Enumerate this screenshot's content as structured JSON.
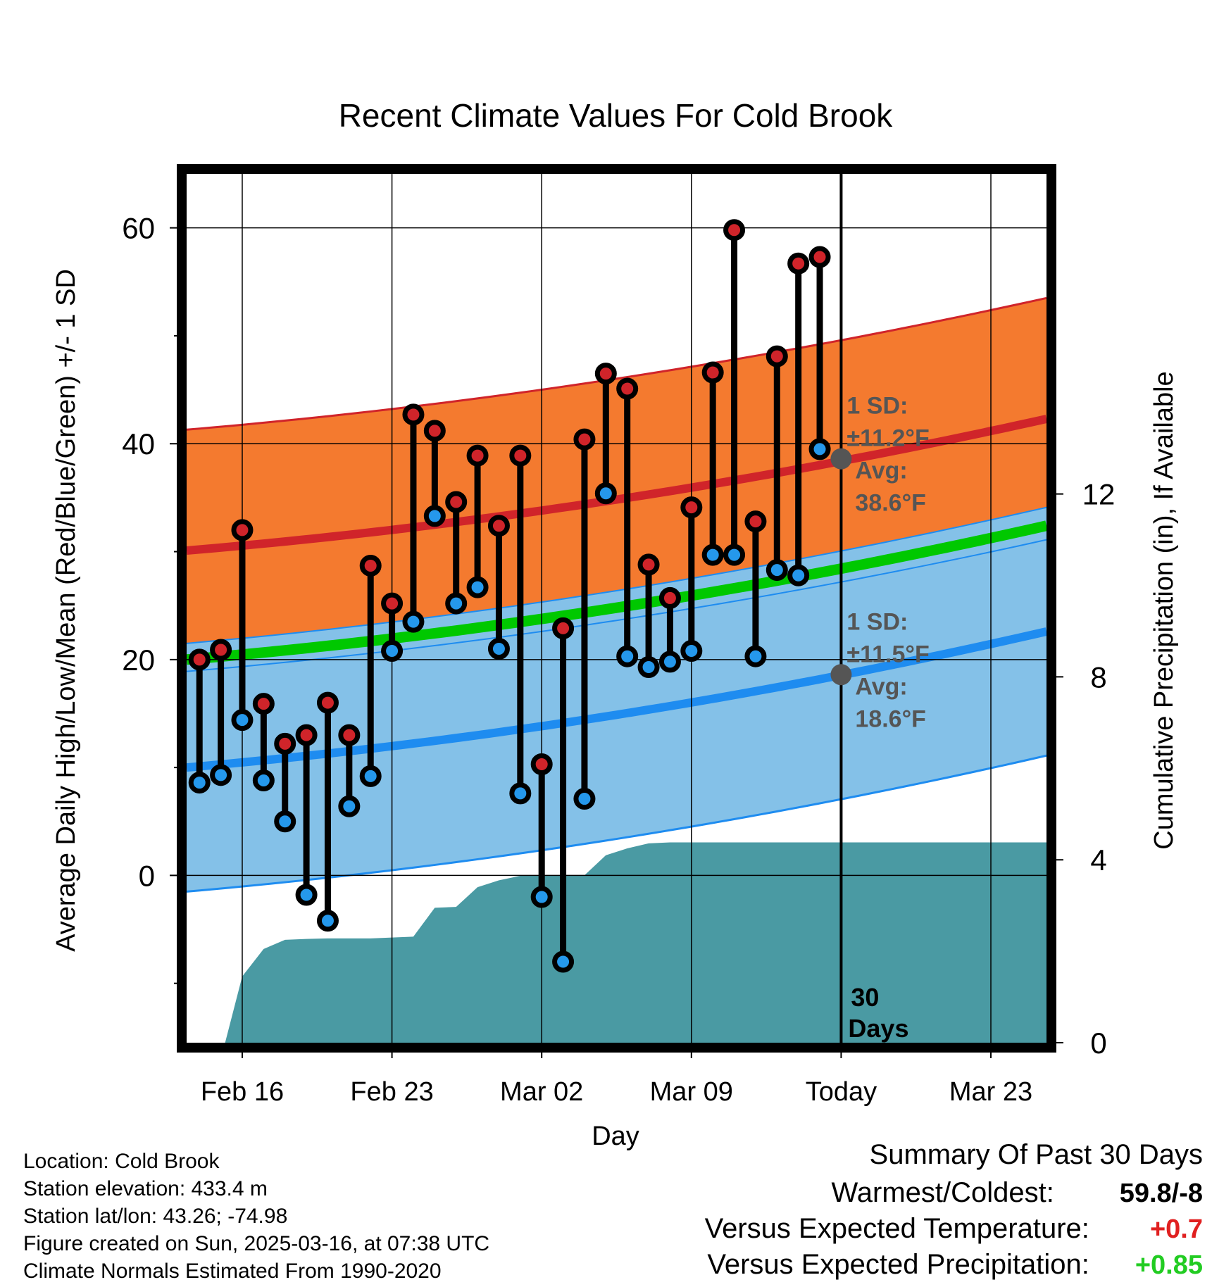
{
  "chart_data": {
    "type": "line",
    "title": "Recent Climate Values For Cold Brook",
    "xlabel": "Day",
    "ylabel": "Average Daily High/Low/Mean (Red/Blue/Green) +/- 1 SD",
    "y2label": "Cumulative Precipitation (in), If Available",
    "x_ticks": [
      "Feb 16",
      "Feb 23",
      "Mar 02",
      "Mar 09",
      "Today",
      "Mar 23"
    ],
    "x_tick_days": [
      0,
      7,
      14,
      21,
      28,
      35
    ],
    "xlim_days": [
      -2.6,
      37.6
    ],
    "ylim": [
      -15.5,
      65
    ],
    "y_ticks": [
      0,
      20,
      40,
      60
    ],
    "y2lim": [
      0,
      19
    ],
    "y2_ticks": [
      0,
      4,
      8,
      12
    ],
    "today_day": 28,
    "today_label": [
      "30",
      "Days"
    ],
    "observed": {
      "days": [
        -2,
        -1,
        0,
        1,
        2,
        3,
        4,
        5,
        6,
        7,
        8,
        9,
        10,
        11,
        12,
        13,
        14,
        15,
        16,
        17,
        18,
        19,
        20,
        21,
        22,
        23,
        24,
        25,
        26,
        27
      ],
      "high": [
        20,
        20.9,
        32,
        15.9,
        12.2,
        13,
        16,
        13,
        28.7,
        25.2,
        42.7,
        41.2,
        34.6,
        38.9,
        32.4,
        38.9,
        10.3,
        22.9,
        40.4,
        46.5,
        45.1,
        28.8,
        25.7,
        34.1,
        46.6,
        59.8,
        32.8,
        48.1,
        56.7,
        57.3
      ],
      "low": [
        8.6,
        9.3,
        14.4,
        8.8,
        5,
        -1.8,
        -4.2,
        6.4,
        9.2,
        20.8,
        23.5,
        33.3,
        25.2,
        26.7,
        21,
        7.6,
        -2,
        -8,
        7.1,
        35.4,
        20.3,
        19.3,
        19.8,
        20.8,
        29.7,
        29.7,
        20.3,
        28.3,
        27.8,
        39.5
      ]
    },
    "normals": {
      "days": [
        -2.6,
        37.6
      ],
      "high_avg": [
        30.1,
        42.3
      ],
      "high_sd": 11.2,
      "low_avg": [
        10,
        22.6
      ],
      "low_sd": 11.5,
      "mean_avg": [
        20.0,
        32.4
      ]
    },
    "precip_cumulative": {
      "days": [
        -2.6,
        -0.8,
        0,
        1,
        2,
        3,
        4,
        6,
        7,
        8,
        9,
        10,
        11,
        12,
        13,
        14,
        15,
        16,
        17,
        18,
        19,
        20,
        21,
        22,
        37.6
      ],
      "values": [
        0,
        0,
        1.45,
        2.05,
        2.25,
        2.27,
        2.28,
        2.28,
        2.3,
        2.32,
        2.95,
        2.97,
        3.4,
        3.55,
        3.65,
        3.65,
        3.66,
        3.66,
        4.1,
        4.25,
        4.36,
        4.38,
        4.38,
        4.38,
        4.38
      ]
    },
    "annotations": {
      "high": {
        "sd_label": "1 SD:",
        "sd_value": "±11.2°F",
        "avg_label": "Avg:",
        "avg_value": "38.6°F",
        "avg": 38.6
      },
      "low": {
        "sd_label": "1 SD:",
        "sd_value": "±11.5°F",
        "avg_label": "Avg:",
        "avg_value": "18.6°F",
        "avg": 18.6
      }
    },
    "colors": {
      "high_band": "#f47a2f",
      "high_line": "#d0242a",
      "low_band": "#84c1e8",
      "low_line": "#1e8cf0",
      "mean_line": "#00c800",
      "overlap": "#921418",
      "precip": "#4a9aa3",
      "high_dot": "#d0242a",
      "low_dot": "#2598ec",
      "annotation": "#555555"
    }
  },
  "footer": {
    "location": "Location: Cold Brook",
    "elevation": "Station elevation: 433.4 m",
    "latlon": "Station lat/lon: 43.26; -74.98",
    "created": "Figure created on Sun, 2025-03-16, at 07:38 UTC",
    "normals": "Climate Normals Estimated From 1990-2020"
  },
  "summary": {
    "heading": "Summary Of Past 30 Days",
    "warmest_label": "Warmest/Coldest:",
    "warmest_value": "59.8/-8",
    "temp_label": "Versus Expected Temperature:",
    "temp_value": "+0.7",
    "temp_color": "#e02020",
    "precip_label": "Versus Expected Precipitation:",
    "precip_value": "+0.85",
    "precip_color": "#22cc22"
  }
}
